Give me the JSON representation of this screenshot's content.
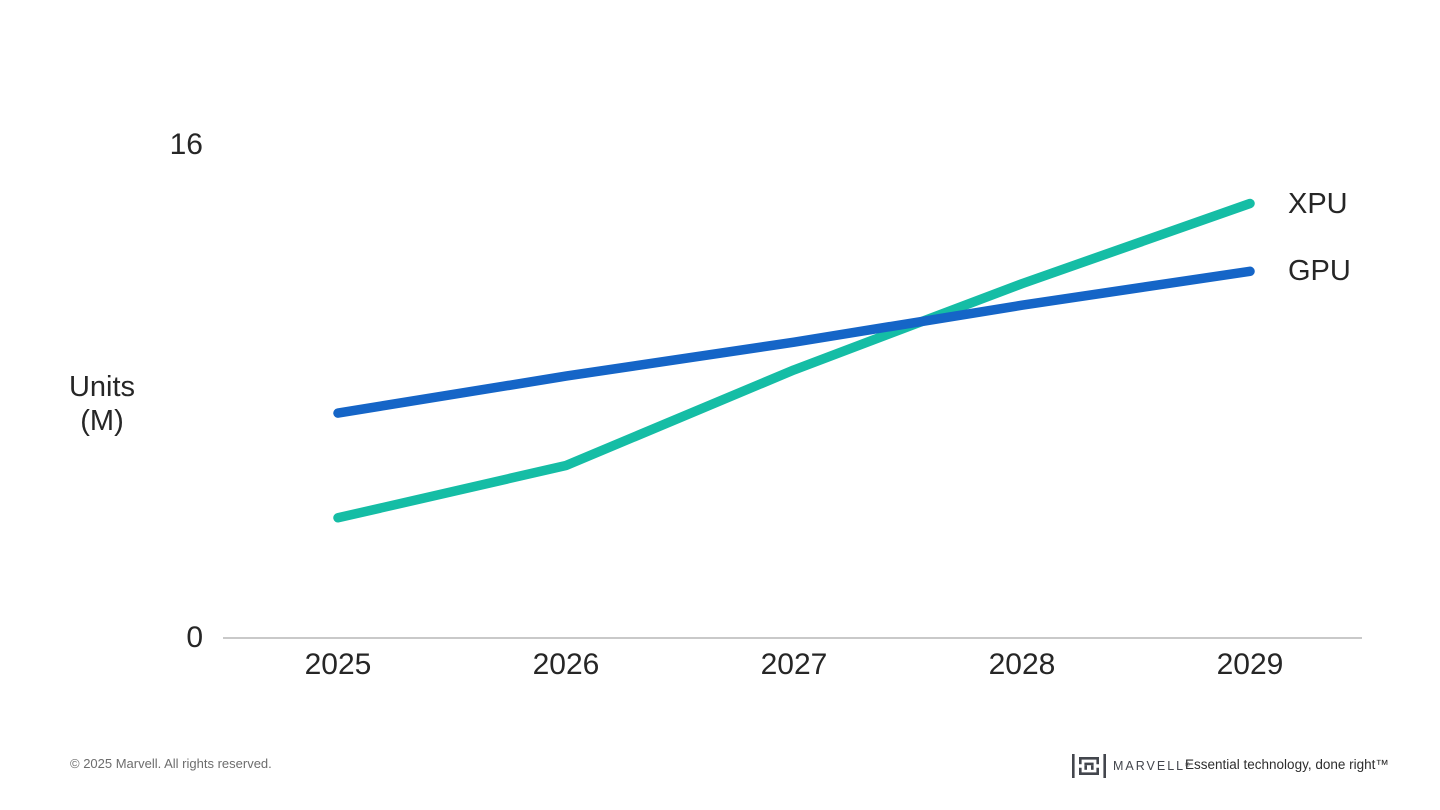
{
  "chart_data": {
    "type": "line",
    "x": [
      "2025",
      "2026",
      "2027",
      "2028",
      "2029"
    ],
    "series": [
      {
        "name": "XPU",
        "color": "#15BDA5",
        "values": [
          3.9,
          5.6,
          8.7,
          11.5,
          14.1
        ]
      },
      {
        "name": "GPU",
        "color": "#1565C7",
        "values": [
          7.3,
          8.5,
          9.6,
          10.8,
          11.9
        ]
      }
    ],
    "ylabel_lines": [
      "Units",
      "(M)"
    ],
    "yticks": [
      {
        "value": 16,
        "label": "16"
      },
      {
        "value": 0,
        "label": "0"
      }
    ],
    "ylim": [
      0,
      16
    ],
    "grid": false,
    "legend_position": "right-of-line-ends",
    "axis_color": "#C9C9C9",
    "label_color": "#262626"
  },
  "footer": {
    "copyright": "© 2025 Marvell. All rights reserved.",
    "brand": {
      "wordmark": "MARVELL",
      "registered_mark": "®",
      "logo_icon": "marvell-bracket-m-logo"
    },
    "tagline": "Essential technology, done right™"
  }
}
